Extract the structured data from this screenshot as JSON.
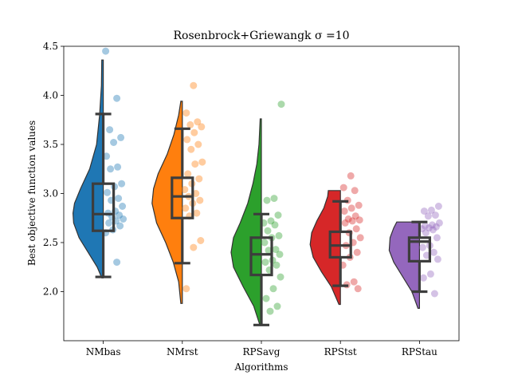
{
  "chart_data": {
    "type": "raincloud",
    "title": "Rosenbrock+Griewangk σ =10",
    "xlabel": "Algorithms",
    "ylabel": "Best objective function values",
    "ylim": [
      1.5,
      4.5
    ],
    "yticks": [
      "2.0",
      "2.5",
      "3.0",
      "3.5",
      "4.0",
      "4.5"
    ],
    "ytick_values": [
      2.0,
      2.5,
      3.0,
      3.5,
      4.0,
      4.5
    ],
    "grid": false,
    "legend": "none",
    "categories": [
      "NMbas",
      "NMrst",
      "RPSavg",
      "RPStst",
      "RPStau"
    ],
    "series": [
      {
        "color": "#1f77b4",
        "density_profile": [
          [
            2.14,
            0.05
          ],
          [
            2.25,
            0.2
          ],
          [
            2.4,
            0.5
          ],
          [
            2.55,
            0.8
          ],
          [
            2.7,
            0.98
          ],
          [
            2.8,
            1.0
          ],
          [
            2.9,
            0.95
          ],
          [
            3.05,
            0.75
          ],
          [
            3.25,
            0.45
          ],
          [
            3.5,
            0.22
          ],
          [
            3.8,
            0.12
          ],
          [
            4.1,
            0.06
          ],
          [
            4.36,
            0.05
          ]
        ],
        "box": {
          "whislo": 2.15,
          "q1": 2.62,
          "med": 2.79,
          "q3": 3.1,
          "whishi": 3.81
        },
        "points": [
          4.45,
          3.97,
          3.65,
          3.57,
          3.52,
          3.38,
          3.27,
          3.25,
          3.1,
          3.07,
          3.01,
          2.95,
          2.93,
          2.87,
          2.82,
          2.8,
          2.78,
          2.76,
          2.74,
          2.72,
          2.7,
          2.67,
          2.63,
          2.6,
          2.3
        ]
      },
      {
        "color": "#ff7f0e",
        "density_profile": [
          [
            1.88,
            0.05
          ],
          [
            2.1,
            0.12
          ],
          [
            2.3,
            0.3
          ],
          [
            2.5,
            0.55
          ],
          [
            2.7,
            0.85
          ],
          [
            2.9,
            1.0
          ],
          [
            3.05,
            0.95
          ],
          [
            3.2,
            0.8
          ],
          [
            3.4,
            0.5
          ],
          [
            3.6,
            0.28
          ],
          [
            3.8,
            0.12
          ],
          [
            3.94,
            0.05
          ]
        ],
        "box": {
          "whislo": 2.29,
          "q1": 2.75,
          "med": 2.97,
          "q3": 3.16,
          "whishi": 3.66
        },
        "points": [
          4.1,
          3.82,
          3.73,
          3.7,
          3.68,
          3.62,
          3.55,
          3.5,
          3.45,
          3.32,
          3.3,
          3.2,
          3.15,
          3.1,
          3.04,
          3.0,
          2.97,
          2.93,
          2.9,
          2.85,
          2.8,
          2.77,
          2.52,
          2.45,
          2.03
        ]
      },
      {
        "color": "#2ca02c",
        "density_profile": [
          [
            1.66,
            0.05
          ],
          [
            1.85,
            0.25
          ],
          [
            2.05,
            0.6
          ],
          [
            2.25,
            0.92
          ],
          [
            2.4,
            1.0
          ],
          [
            2.55,
            0.92
          ],
          [
            2.7,
            0.7
          ],
          [
            2.9,
            0.45
          ],
          [
            3.1,
            0.28
          ],
          [
            3.3,
            0.15
          ],
          [
            3.5,
            0.08
          ],
          [
            3.76,
            0.04
          ]
        ],
        "box": {
          "whislo": 1.66,
          "q1": 2.17,
          "med": 2.38,
          "q3": 2.55,
          "whishi": 2.79
        },
        "points": [
          3.91,
          2.95,
          2.93,
          2.78,
          2.72,
          2.7,
          2.68,
          2.62,
          2.57,
          2.55,
          2.5,
          2.43,
          2.42,
          2.38,
          2.32,
          2.3,
          2.27,
          2.22,
          2.15,
          2.03,
          1.93,
          1.85,
          1.8
        ]
      },
      {
        "color": "#d62728",
        "density_profile": [
          [
            1.87,
            0.05
          ],
          [
            2.05,
            0.3
          ],
          [
            2.2,
            0.62
          ],
          [
            2.35,
            0.9
          ],
          [
            2.48,
            1.0
          ],
          [
            2.6,
            0.95
          ],
          [
            2.72,
            0.78
          ],
          [
            2.85,
            0.55
          ],
          [
            2.97,
            0.42
          ],
          [
            3.03,
            0.4
          ]
        ],
        "box": {
          "whislo": 2.06,
          "q1": 2.35,
          "med": 2.47,
          "q3": 2.61,
          "whishi": 2.92
        },
        "points": [
          3.18,
          3.06,
          3.03,
          2.93,
          2.88,
          2.85,
          2.82,
          2.77,
          2.74,
          2.73,
          2.72,
          2.7,
          2.64,
          2.6,
          2.55,
          2.5,
          2.47,
          2.4,
          2.35,
          2.27,
          2.1,
          2.07,
          2.03
        ]
      },
      {
        "color": "#9467bd",
        "density_profile": [
          [
            1.83,
            0.05
          ],
          [
            2.0,
            0.25
          ],
          [
            2.15,
            0.55
          ],
          [
            2.3,
            0.85
          ],
          [
            2.42,
            1.0
          ],
          [
            2.55,
            0.97
          ],
          [
            2.65,
            0.85
          ],
          [
            2.71,
            0.75
          ]
        ],
        "box": {
          "whislo": 2.0,
          "q1": 2.31,
          "med": 2.51,
          "q3": 2.55,
          "whishi": 2.71
        },
        "points": [
          2.87,
          2.83,
          2.82,
          2.78,
          2.77,
          2.7,
          2.68,
          2.67,
          2.66,
          2.65,
          2.64,
          2.63,
          2.6,
          2.55,
          2.47,
          2.45,
          2.4,
          2.37,
          2.33,
          2.18,
          2.14,
          1.98
        ]
      }
    ]
  }
}
